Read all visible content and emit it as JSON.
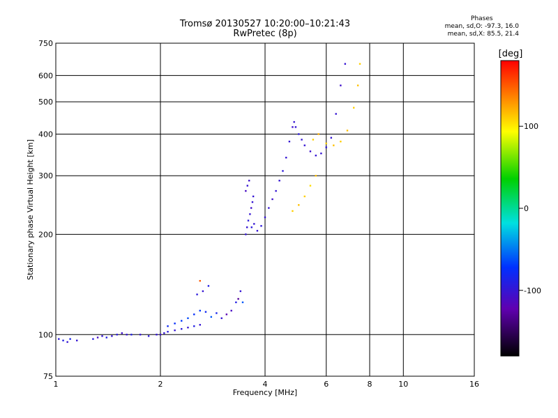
{
  "chart_data": {
    "type": "scatter",
    "title": "Tromsø 20130527 10:20:00–10:21:43",
    "subtitle": "RwPretec (8p)",
    "xlabel": "Frequency [MHz]",
    "ylabel": "Stationary phase Virtual Height [km]",
    "xscale": "log",
    "yscale": "log",
    "xlim": [
      1,
      16
    ],
    "ylim": [
      75,
      750
    ],
    "xticks": [
      "1",
      "2",
      "4",
      "6",
      "8",
      "10",
      "16"
    ],
    "yticks": [
      "75",
      "100",
      "200",
      "300",
      "400",
      "500",
      "600",
      "750"
    ],
    "grid": true,
    "colorbar": {
      "label": "[deg]",
      "range": [
        -180,
        180
      ],
      "ticks": [
        "100",
        "0",
        "-100"
      ]
    },
    "phase_stats": {
      "header": "Phases",
      "line_o": "mean, sd,O: -97.3, 16.0",
      "line_x": "mean, sd,X: 85.5, 21.4"
    },
    "series": [
      {
        "points": [
          [
            1.02,
            97,
            -95
          ],
          [
            1.05,
            96,
            -90
          ],
          [
            1.08,
            95,
            -100
          ],
          [
            1.1,
            97,
            -85
          ],
          [
            1.15,
            96,
            -100
          ],
          [
            1.28,
            97,
            -95
          ],
          [
            1.32,
            98,
            -110
          ],
          [
            1.36,
            99,
            -100
          ],
          [
            1.4,
            98,
            -90
          ],
          [
            1.45,
            99,
            -100
          ],
          [
            1.5,
            100,
            -95
          ],
          [
            1.55,
            101,
            -105
          ],
          [
            1.6,
            100,
            -100
          ],
          [
            1.65,
            100,
            -90
          ],
          [
            1.75,
            100,
            -100
          ],
          [
            1.85,
            99,
            -95
          ],
          [
            1.95,
            100,
            -100
          ],
          [
            2.0,
            100,
            -105
          ],
          [
            2.05,
            101,
            -100
          ],
          [
            2.1,
            102,
            -95
          ],
          [
            2.2,
            103,
            -100
          ],
          [
            2.3,
            104,
            -95
          ],
          [
            2.4,
            105,
            -100
          ],
          [
            2.5,
            106,
            -90
          ],
          [
            2.6,
            107,
            -100
          ]
        ]
      },
      {
        "points": [
          [
            2.1,
            106,
            -80
          ],
          [
            2.2,
            108,
            -75
          ],
          [
            2.3,
            110,
            -70
          ],
          [
            2.4,
            112,
            -65
          ],
          [
            2.5,
            115,
            -75
          ],
          [
            2.6,
            118,
            -70
          ],
          [
            2.7,
            117,
            -80
          ],
          [
            2.8,
            113,
            -60
          ],
          [
            2.9,
            116,
            -85
          ],
          [
            3.0,
            112,
            -100
          ],
          [
            3.1,
            115,
            -120
          ],
          [
            3.2,
            118,
            -110
          ],
          [
            3.3,
            125,
            -90
          ],
          [
            3.35,
            128,
            -130
          ],
          [
            3.4,
            135,
            -100
          ],
          [
            3.45,
            125,
            -60
          ],
          [
            2.55,
            132,
            -95
          ],
          [
            2.65,
            135,
            -100
          ],
          [
            2.75,
            140,
            -90
          ],
          [
            2.6,
            145,
            150
          ]
        ]
      },
      {
        "points": [
          [
            3.52,
            200,
            -100
          ],
          [
            3.55,
            210,
            -100
          ],
          [
            3.58,
            220,
            -95
          ],
          [
            3.62,
            230,
            -100
          ],
          [
            3.65,
            240,
            -105
          ],
          [
            3.68,
            250,
            -100
          ],
          [
            3.7,
            260,
            -100
          ],
          [
            3.52,
            270,
            -110
          ],
          [
            3.56,
            280,
            -100
          ],
          [
            3.6,
            290,
            -105
          ],
          [
            3.66,
            210,
            -95
          ],
          [
            3.72,
            215,
            -100
          ],
          [
            3.8,
            205,
            -100
          ],
          [
            3.9,
            212,
            -95
          ],
          [
            4.0,
            225,
            -100
          ],
          [
            4.1,
            240,
            -100
          ],
          [
            4.2,
            255,
            -105
          ],
          [
            4.3,
            270,
            -100
          ],
          [
            4.4,
            290,
            -100
          ],
          [
            4.5,
            310,
            -95
          ],
          [
            4.6,
            340,
            -100
          ],
          [
            4.7,
            380,
            -100
          ],
          [
            4.8,
            420,
            -105
          ],
          [
            4.85,
            435,
            -100
          ],
          [
            4.9,
            420,
            -100
          ],
          [
            5.0,
            400,
            -95
          ],
          [
            5.1,
            385,
            -100
          ],
          [
            5.2,
            370,
            -100
          ],
          [
            5.4,
            355,
            -105
          ],
          [
            5.6,
            345,
            -100
          ],
          [
            5.8,
            350,
            -100
          ],
          [
            6.0,
            365,
            -95
          ],
          [
            6.2,
            390,
            -100
          ],
          [
            6.4,
            460,
            -100
          ],
          [
            6.6,
            560,
            -105
          ],
          [
            6.8,
            650,
            -100
          ]
        ]
      },
      {
        "points": [
          [
            4.8,
            235,
            110
          ],
          [
            5.0,
            245,
            115
          ],
          [
            5.2,
            260,
            110
          ],
          [
            5.4,
            280,
            105
          ],
          [
            5.6,
            300,
            115
          ],
          [
            5.5,
            385,
            110
          ],
          [
            5.7,
            400,
            120
          ],
          [
            6.0,
            375,
            110
          ],
          [
            6.3,
            370,
            115
          ],
          [
            6.6,
            380,
            110
          ],
          [
            6.9,
            410,
            115
          ],
          [
            7.2,
            480,
            110
          ],
          [
            7.4,
            560,
            115
          ],
          [
            7.5,
            650,
            110
          ]
        ]
      }
    ]
  }
}
